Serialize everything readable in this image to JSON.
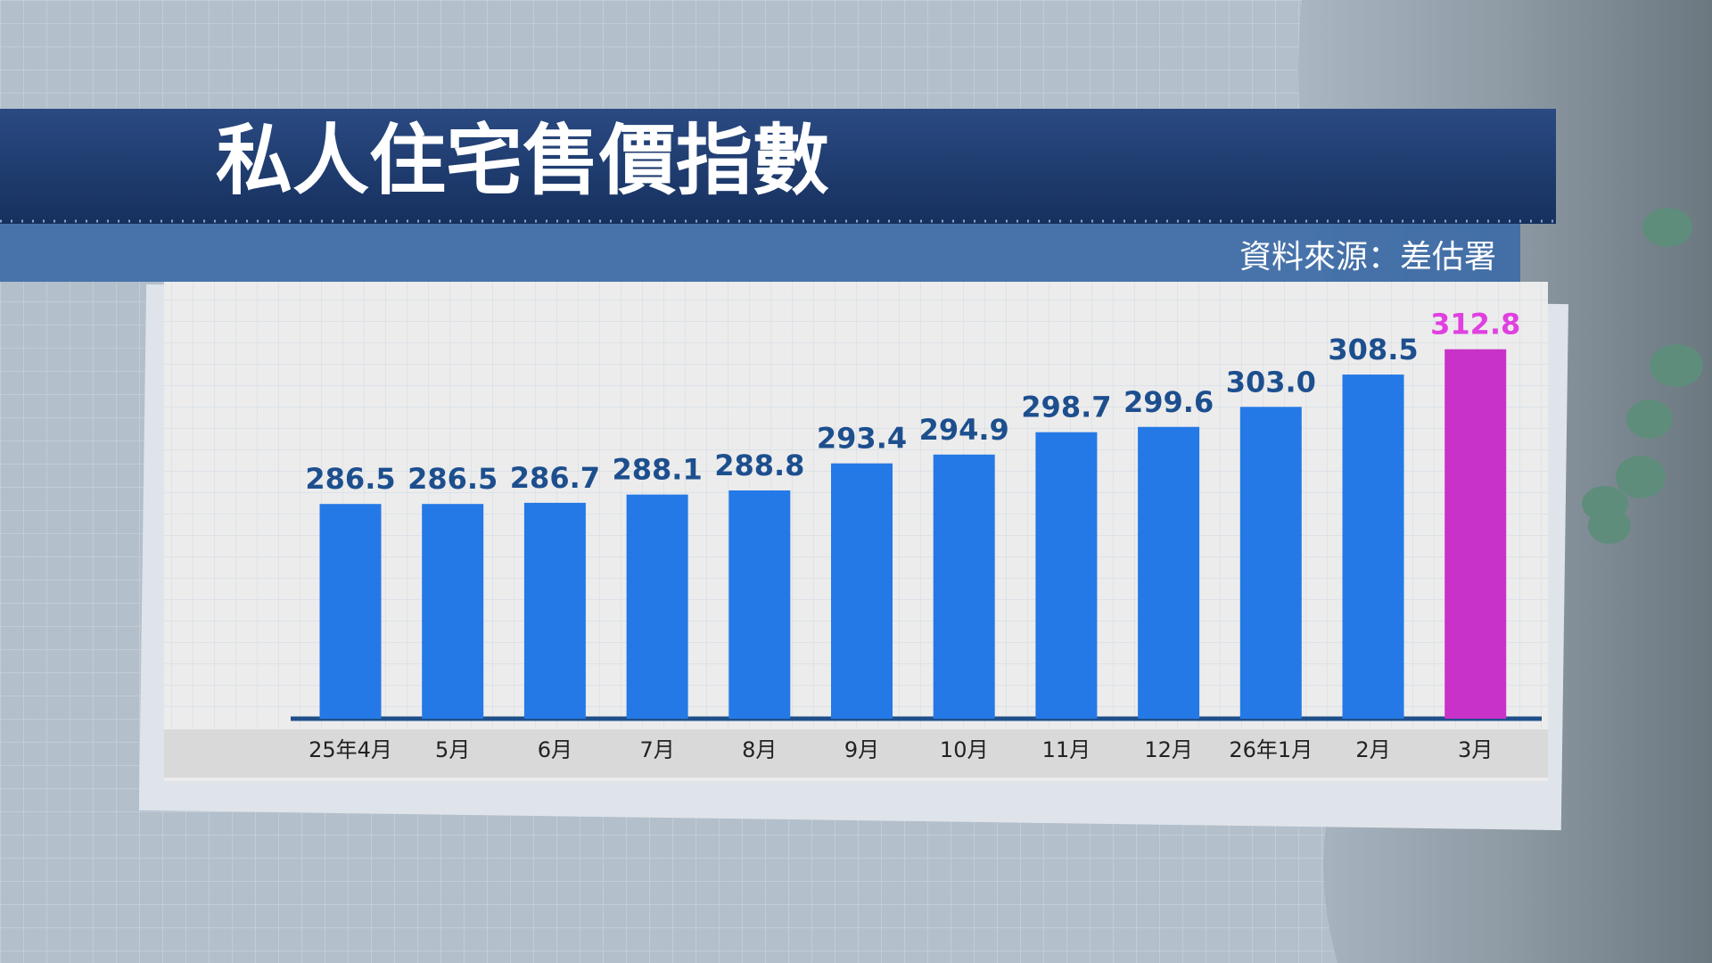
{
  "chart_data": {
    "type": "bar",
    "title": "私人住宅售價指數",
    "source": "資料來源：差估署",
    "categories": [
      "25年4月",
      "5月",
      "6月",
      "7月",
      "8月",
      "9月",
      "10月",
      "11月",
      "12月",
      "26年1月",
      "2月",
      "3月"
    ],
    "values": [
      286.5,
      286.5,
      286.7,
      288.1,
      288.8,
      293.4,
      294.9,
      298.7,
      299.6,
      303.0,
      308.5,
      312.8
    ],
    "value_labels": [
      "286.5",
      "286.5",
      "286.7",
      "288.1",
      "288.8",
      "293.4",
      "294.9",
      "298.7",
      "299.6",
      "303.0",
      "308.5",
      "312.8"
    ],
    "colors": [
      "#2479e6",
      "#2479e6",
      "#2479e6",
      "#2479e6",
      "#2479e6",
      "#2479e6",
      "#2479e6",
      "#2479e6",
      "#2479e6",
      "#2479e6",
      "#2479e6",
      "#c832c8"
    ],
    "value_label_colors": [
      "#1d4f8e",
      "#1d4f8e",
      "#1d4f8e",
      "#1d4f8e",
      "#1d4f8e",
      "#1d4f8e",
      "#1d4f8e",
      "#1d4f8e",
      "#1d4f8e",
      "#1d4f8e",
      "#1d4f8e",
      "#e040e0"
    ],
    "ylim": [
      250,
      322
    ]
  }
}
